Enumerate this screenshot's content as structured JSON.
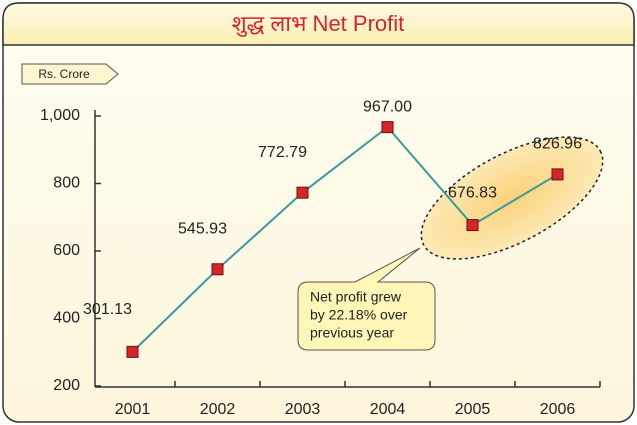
{
  "chart_data": {
    "type": "line",
    "title": "शुद्ध लाभ   Net Profit",
    "unit_label": "Rs. Crore",
    "categories": [
      "2001",
      "2002",
      "2003",
      "2004",
      "2005",
      "2006"
    ],
    "series": [
      {
        "name": "Net Profit",
        "color": "#3a9c9c",
        "marker_color": "#d8232a",
        "values": [
          301.13,
          545.93,
          772.79,
          967.0,
          676.83,
          826.96
        ],
        "value_labels": [
          "301.13",
          "545.93",
          "772.79",
          "967.00",
          "676.83",
          "826.96"
        ]
      }
    ],
    "ylim": [
      200,
      1000
    ],
    "yticks": [
      {
        "value": 1000,
        "label": "1,000"
      },
      800,
      600,
      400,
      200
    ],
    "annotation": [
      "Net profit grew",
      "by 22.18% over",
      "previous year"
    ]
  }
}
